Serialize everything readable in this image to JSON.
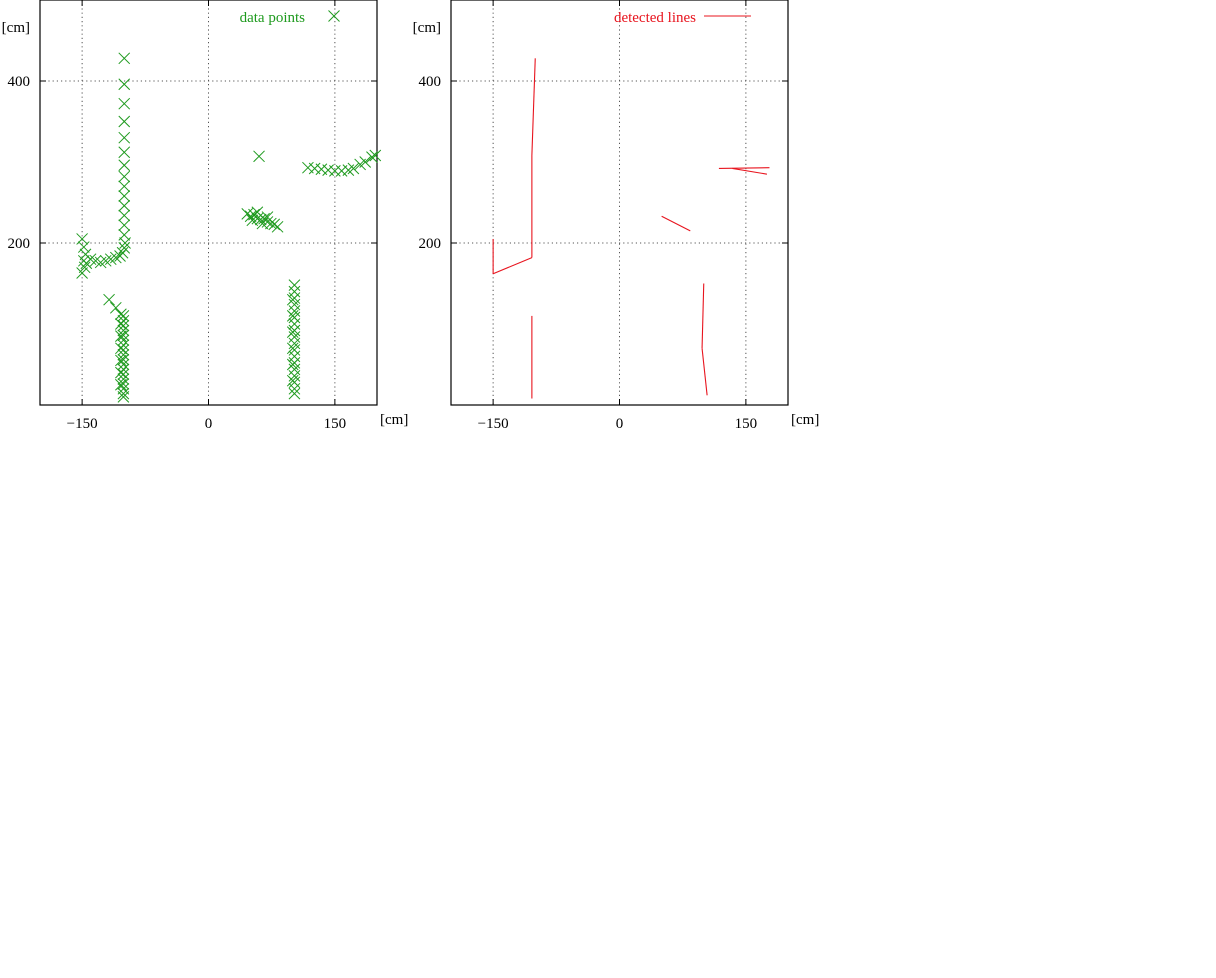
{
  "chart_data": [
    {
      "type": "scatter",
      "xlim": [
        -200,
        200
      ],
      "ylim": [
        0,
        500
      ],
      "xticks": [
        -150,
        0,
        150
      ],
      "yticks": [
        200,
        400
      ],
      "tick_labels_x": [
        "−150",
        "0",
        "150"
      ],
      "tick_labels_y": [
        "200",
        "400"
      ],
      "xunit": "[cm]",
      "yunit": "[cm]",
      "grid": true,
      "legend_position": "top-right",
      "color": "#1e9a1e",
      "series": [
        {
          "name": "data points",
          "points": [
            [
              -150,
              205
            ],
            [
              -148,
              195
            ],
            [
              -146,
              186
            ],
            [
              -148,
              178
            ],
            [
              -147,
              170
            ],
            [
              -150,
              163
            ],
            [
              -145,
              175
            ],
            [
              -140,
              180
            ],
            [
              -134,
              178
            ],
            [
              -128,
              176
            ],
            [
              -122,
              178
            ],
            [
              -116,
              180
            ],
            [
              -110,
              182
            ],
            [
              -105,
              184
            ],
            [
              -102,
              188
            ],
            [
              -100,
              194
            ],
            [
              -99,
              200
            ],
            [
              -100,
              210
            ],
            [
              -100,
              222
            ],
            [
              -100,
              234
            ],
            [
              -100,
              246
            ],
            [
              -100,
              258
            ],
            [
              -100,
              270
            ],
            [
              -100,
              282
            ],
            [
              -100,
              296
            ],
            [
              -100,
              312
            ],
            [
              -100,
              330
            ],
            [
              -100,
              350
            ],
            [
              -100,
              372
            ],
            [
              -100,
              396
            ],
            [
              -100,
              428
            ],
            [
              -118,
              130
            ],
            [
              -110,
              120
            ],
            [
              -104,
              112
            ],
            [
              -101,
              110
            ],
            [
              -101,
              104
            ],
            [
              -101,
              98
            ],
            [
              -101,
              92
            ],
            [
              -101,
              86
            ],
            [
              -101,
              80
            ],
            [
              -101,
              74
            ],
            [
              -101,
              68
            ],
            [
              -101,
              62
            ],
            [
              -101,
              56
            ],
            [
              -101,
              50
            ],
            [
              -101,
              44
            ],
            [
              -101,
              38
            ],
            [
              -101,
              32
            ],
            [
              -101,
              26
            ],
            [
              -101,
              20
            ],
            [
              -101,
              14
            ],
            [
              -101,
              10
            ],
            [
              -104,
              100
            ],
            [
              -104,
              85
            ],
            [
              -104,
              70
            ],
            [
              -104,
              55
            ],
            [
              -104,
              40
            ],
            [
              -104,
              25
            ],
            [
              46,
              236
            ],
            [
              50,
              233
            ],
            [
              54,
              235
            ],
            [
              58,
              230
            ],
            [
              62,
              229
            ],
            [
              66,
              230
            ],
            [
              70,
              226
            ],
            [
              74,
              224
            ],
            [
              78,
              223
            ],
            [
              82,
              220
            ],
            [
              52,
              228
            ],
            [
              58,
              238
            ],
            [
              64,
              224
            ],
            [
              70,
              232
            ],
            [
              60,
              307
            ],
            [
              102,
              148
            ],
            [
              102,
              140
            ],
            [
              102,
              132
            ],
            [
              102,
              124
            ],
            [
              102,
              116
            ],
            [
              102,
              108
            ],
            [
              102,
              100
            ],
            [
              102,
              92
            ],
            [
              102,
              84
            ],
            [
              102,
              76
            ],
            [
              102,
              68
            ],
            [
              102,
              60
            ],
            [
              102,
              52
            ],
            [
              102,
              44
            ],
            [
              102,
              36
            ],
            [
              102,
              28
            ],
            [
              102,
              20
            ],
            [
              102,
              14
            ],
            [
              100,
              130
            ],
            [
              100,
              110
            ],
            [
              100,
              90
            ],
            [
              100,
              70
            ],
            [
              100,
              50
            ],
            [
              100,
              30
            ],
            [
              118,
              293
            ],
            [
              126,
              292
            ],
            [
              134,
              291
            ],
            [
              142,
              290
            ],
            [
              150,
              289
            ],
            [
              158,
              289
            ],
            [
              166,
              290
            ],
            [
              172,
              292
            ],
            [
              180,
              297
            ],
            [
              186,
              300
            ],
            [
              194,
              306
            ],
            [
              198,
              308
            ]
          ]
        }
      ]
    },
    {
      "type": "line",
      "xlim": [
        -200,
        200
      ],
      "ylim": [
        0,
        500
      ],
      "xticks": [
        -150,
        0,
        150
      ],
      "yticks": [
        200,
        400
      ],
      "tick_labels_x": [
        "−150",
        "0",
        "150"
      ],
      "tick_labels_y": [
        "200",
        "400"
      ],
      "xunit": "[cm]",
      "yunit": "[cm]",
      "grid": true,
      "legend_position": "top-right",
      "color": "#e8141e",
      "series": [
        {
          "name": "detected lines",
          "segments": [
            [
              [
                -150,
                205
              ],
              [
                -150,
                162
              ]
            ],
            [
              [
                -150,
                162
              ],
              [
                -104,
                182
              ]
            ],
            [
              [
                -104,
                182
              ],
              [
                -104,
                308
              ]
            ],
            [
              [
                -104,
                308
              ],
              [
                -100,
                428
              ]
            ],
            [
              [
                -104,
                110
              ],
              [
                -104,
                8
              ]
            ],
            [
              [
                50,
                233
              ],
              [
                84,
                215
              ]
            ],
            [
              [
                100,
                150
              ],
              [
                98,
                70
              ]
            ],
            [
              [
                98,
                70
              ],
              [
                104,
                12
              ]
            ],
            [
              [
                118,
                292
              ],
              [
                178,
                293
              ]
            ],
            [
              [
                134,
                292
              ],
              [
                175,
                285
              ]
            ]
          ]
        }
      ]
    }
  ]
}
